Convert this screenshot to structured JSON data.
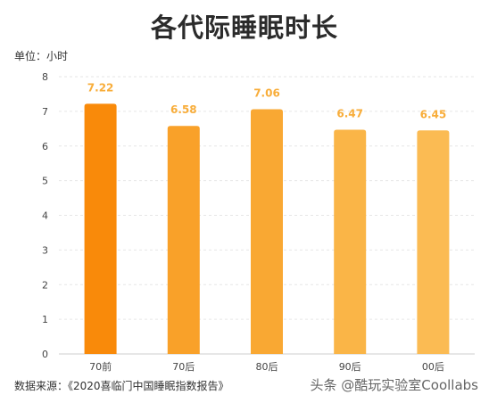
{
  "chart_data": {
    "type": "bar",
    "title": "各代际睡眠时长",
    "unit_label": "单位：小时",
    "categories": [
      "70前",
      "70后",
      "80后",
      "90后",
      "00后"
    ],
    "values": [
      7.22,
      6.58,
      7.06,
      6.47,
      6.45
    ],
    "value_labels": [
      "7.22",
      "6.58",
      "7.06",
      "6.47",
      "6.45"
    ],
    "ylim": [
      0,
      8
    ],
    "yticks": [
      "0",
      "1",
      "2",
      "3",
      "4",
      "5",
      "6",
      "7",
      "8"
    ],
    "bar_colors": [
      "#f98a0a",
      "#f9a129",
      "#f9a833",
      "#fab547",
      "#fbbb53"
    ],
    "label_color": "#f8ad3a",
    "grid": true,
    "source": "数据来源：《2020喜临门中国睡眠指数报告》"
  },
  "watermark": "头条 @酷玩实验室Coollabs"
}
